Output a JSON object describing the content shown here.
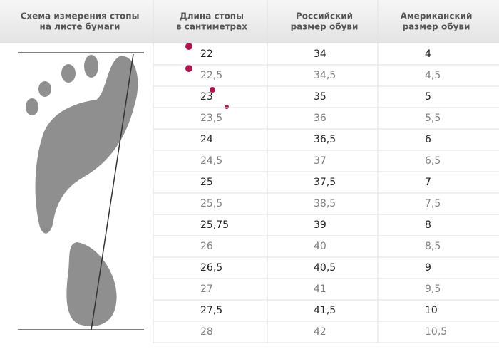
{
  "table": {
    "header": [
      [
        "Схема измерения стопы",
        "на листе бумаги"
      ],
      [
        "Длина стопы",
        "в сантиметрах"
      ],
      [
        "Российский",
        "размер обуви"
      ],
      [
        "Американский",
        "размер обуви"
      ]
    ],
    "rows": [
      [
        "22",
        "34",
        "4"
      ],
      [
        "22,5",
        "34,5",
        "4,5"
      ],
      [
        "23",
        "35",
        "5"
      ],
      [
        "23,5",
        "36",
        "5,5"
      ],
      [
        "24",
        "36,5",
        "6"
      ],
      [
        "24,5",
        "37",
        "6,5"
      ],
      [
        "25",
        "37,5",
        "7"
      ],
      [
        "25,5",
        "38,5",
        "7,5"
      ],
      [
        "25,75",
        "39",
        "8"
      ],
      [
        "26",
        "40",
        "8,5"
      ],
      [
        "26,5",
        "40,5",
        "9"
      ],
      [
        "27",
        "41",
        "9,5"
      ],
      [
        "27,5",
        "41,5",
        "10"
      ],
      [
        "28",
        "42",
        "10,5"
      ]
    ]
  }
}
